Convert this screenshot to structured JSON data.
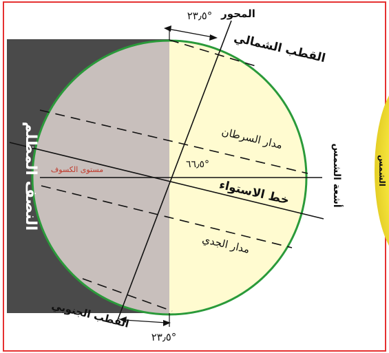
{
  "labels": {
    "axis": "المحور",
    "north_pole": "القطب الشمالي",
    "south_pole": "القطب الجنوبي",
    "tropic_cancer": "مدار السرطان",
    "tropic_capricorn": "مدار الجدي",
    "equator": "خط الاستواء",
    "ecliptic_plane": "مستوى الكسوف",
    "dark_half": "النصف المظلم",
    "sun_rays": "أشعة الشمس",
    "sun": "الشمس",
    "tilt_top": "٢٣٫٥°",
    "tilt_bottom": "٢٣٫٥°",
    "angle_center": "٦٦٫٥°"
  },
  "colors": {
    "frame": "#e53030",
    "dark_band": "#4a4a4a",
    "night_side": "#c8bfbc",
    "day_side": "#fffbd0",
    "globe_outline": "#2a9a3a",
    "sun": "#f5e93a",
    "ecliptic_label": "#c0392b"
  }
}
